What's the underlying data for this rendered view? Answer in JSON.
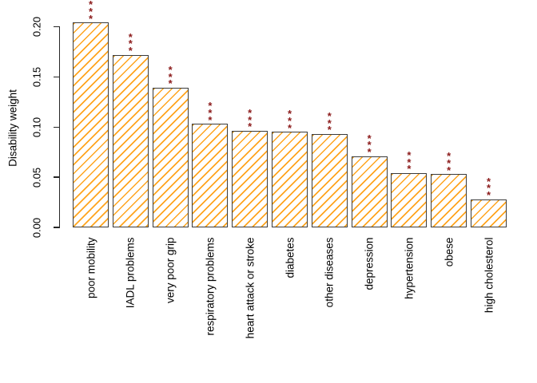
{
  "chart_data": {
    "type": "bar",
    "title": "",
    "xlabel": "",
    "ylabel": "Disability weight",
    "categories": [
      "poor mobility",
      "IADL problems",
      "very poor grip",
      "respiratory problems",
      "heart attack or stroke",
      "diabetes",
      "other diseases",
      "depression",
      "hypertension",
      "obese",
      "high cholesterol"
    ],
    "values": [
      0.204,
      0.172,
      0.139,
      0.103,
      0.096,
      0.095,
      0.093,
      0.071,
      0.054,
      0.053,
      0.028
    ],
    "significance": [
      "***",
      "***",
      "***",
      "***",
      "***",
      "***",
      "***",
      "***",
      "***",
      "***",
      "***"
    ],
    "ytick_labels": [
      "0.00",
      "0.05",
      "0.10",
      "0.15",
      "0.20"
    ],
    "yticks": [
      0.0,
      0.05,
      0.1,
      0.15,
      0.2
    ],
    "ylim": [
      0.0,
      0.204
    ],
    "grid": "off",
    "legend": "none",
    "bar_hatch": "diagonal-45deg",
    "colors": {
      "bar_hatch": "#FFA41E",
      "bar_border": "#3a3a3a",
      "significance_stars": "#8B1A1A",
      "axis": "#262626",
      "background": "#ffffff",
      "text": "#000000"
    }
  }
}
